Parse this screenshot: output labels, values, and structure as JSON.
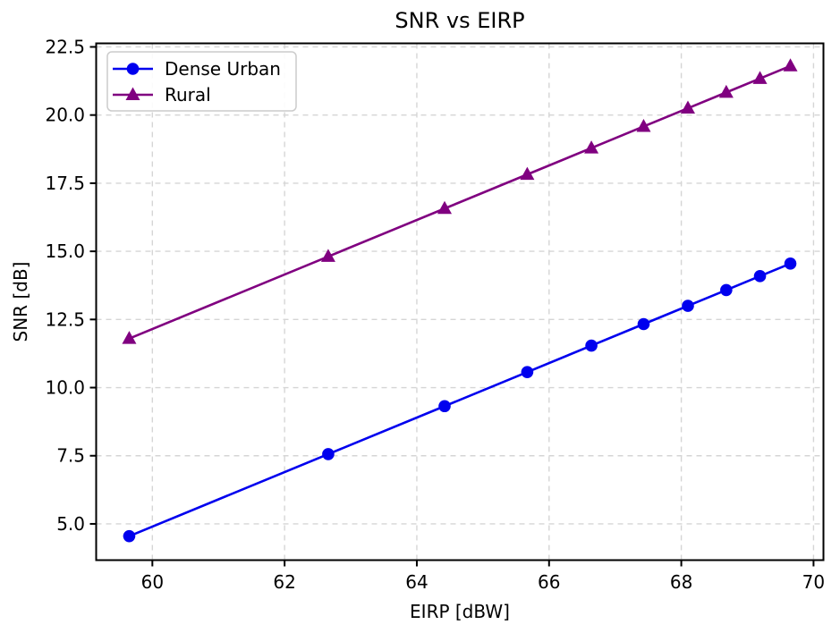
{
  "figure": {
    "title": "SNR vs EIRP"
  },
  "colors": {
    "dense_urban": "#0000ee",
    "rural": "#800080",
    "grid": "#d5d5d5",
    "spine": "#000000",
    "legend_border": "#cccccc",
    "background": "#ffffff"
  },
  "chart_data": {
    "type": "line",
    "title": "SNR vs EIRP",
    "xlabel": "EIRP [dBW]",
    "ylabel": "SNR [dB]",
    "xlim": [
      59.15,
      70.15
    ],
    "ylim": [
      3.67,
      22.63
    ],
    "grid": true,
    "grid_style": "dashed",
    "legend_position": "upper-left",
    "xticks": {
      "values": [
        60,
        62,
        64,
        66,
        68,
        70
      ],
      "labels": [
        "60",
        "62",
        "64",
        "66",
        "68",
        "70"
      ]
    },
    "yticks": {
      "values": [
        5.0,
        7.5,
        10.0,
        12.5,
        15.0,
        17.5,
        20.0,
        22.5
      ],
      "labels": [
        "5.0",
        "7.5",
        "10.0",
        "12.5",
        "15.0",
        "17.5",
        "20.0",
        "22.5"
      ]
    },
    "x": [
      59.65,
      62.66,
      64.42,
      65.67,
      66.64,
      67.43,
      68.1,
      68.68,
      69.19,
      69.65
    ],
    "series": [
      {
        "name": "Dense Urban",
        "marker": "circle",
        "color": "#0000ee",
        "values": [
          4.55,
          7.56,
          9.32,
          10.57,
          11.54,
          12.33,
          13.0,
          13.58,
          14.09,
          14.55
        ]
      },
      {
        "name": "Rural",
        "marker": "triangle",
        "color": "#800080",
        "values": [
          11.8,
          14.81,
          16.57,
          17.82,
          18.79,
          19.58,
          20.25,
          20.83,
          21.34,
          21.8
        ]
      }
    ]
  }
}
